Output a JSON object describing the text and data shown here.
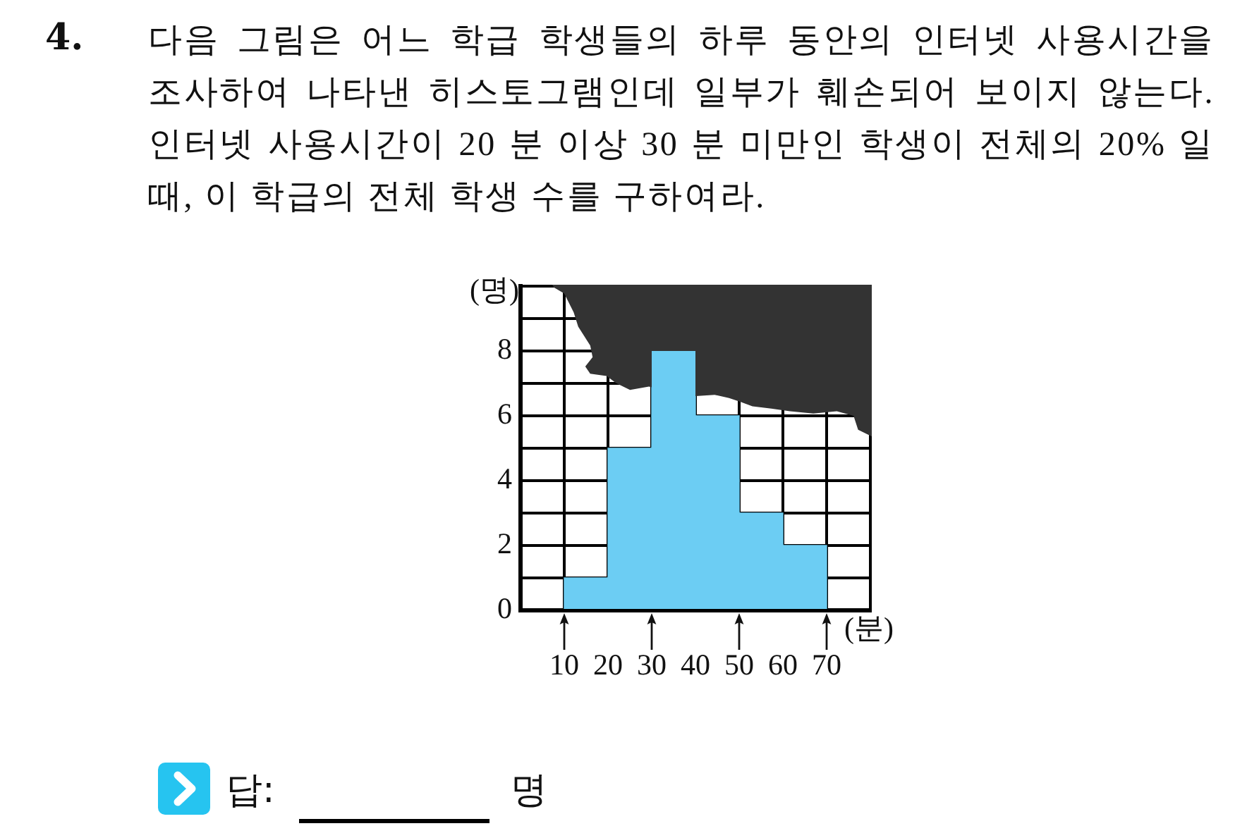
{
  "chart_data": {
    "type": "histogram",
    "title": "다음 그림은 어느 학급 학생들의 하루 동안의 인터넷 사용시간을 조사하여 나타낸 히스토그램인데 일부가 훼손되어 보이지 않는다. 인터넷 사용시간이 20 분 이상 30 분 미만인 학생이 전체의 20% 일 때, 이 학급의 전체 학생 수를 구하여라.",
    "xlabel": "(분)",
    "ylabel": "(명)",
    "annotations": [
      "4.",
      "답:",
      "명"
    ],
    "bins": [
      10,
      20,
      30,
      40,
      50,
      60,
      70
    ],
    "values": [
      1,
      5,
      8,
      6,
      3,
      2
    ],
    "color": "#6ccdf3",
    "xlim": [
      0,
      80
    ],
    "xticks": [
      {
        "value": 0,
        "label": null
      },
      10,
      20,
      30,
      40,
      50,
      60,
      70
    ],
    "ylim": [
      0,
      10
    ],
    "yticks": [
      0,
      {
        "value": 1,
        "label": null
      },
      2,
      {
        "value": 3,
        "label": null
      },
      4,
      {
        "value": 5,
        "label": null
      },
      6,
      {
        "value": 7,
        "label": null
      },
      8,
      {
        "value": 9,
        "label": null
      },
      {
        "value": 10,
        "label": null
      }
    ],
    "grid": true
  }
}
